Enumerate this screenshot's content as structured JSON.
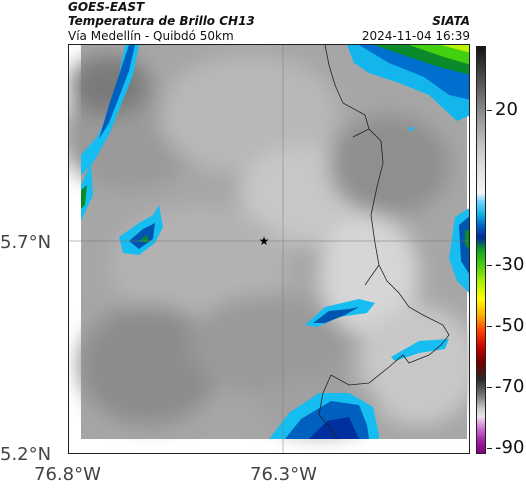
{
  "header": {
    "title": "GOES-EAST",
    "subtitle": "Temperatura de Brillo CH13",
    "region": "Vía Medellín - Quibdó 50km",
    "org": "SIATA",
    "timestamp": "2024-11-04 16:39"
  },
  "axes": {
    "y_labels": [
      "5.7°N",
      "5.2°N"
    ],
    "x_labels": [
      "76.8°W",
      "76.3°W"
    ]
  },
  "colorbar": {
    "labels": [
      "20",
      "-30",
      "-50",
      "-70",
      "-90"
    ]
  },
  "map": {
    "marker": "star",
    "marker_icon": "star-icon"
  }
}
